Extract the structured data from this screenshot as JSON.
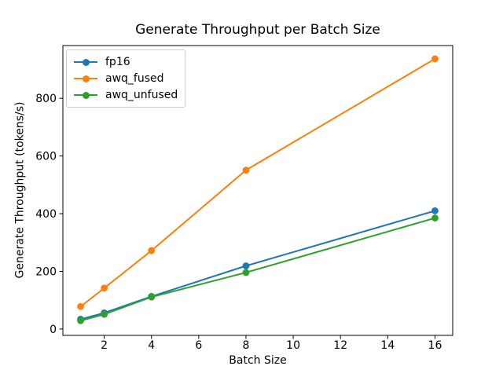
{
  "chart_data": {
    "type": "line",
    "title": "Generate Throughput per Batch Size",
    "xlabel": "Batch Size",
    "ylabel": "Generate Throughput (tokens/s)",
    "x": [
      1,
      2,
      4,
      8,
      16
    ],
    "series": [
      {
        "name": "fp16",
        "color": "#1f77b4",
        "values": [
          34,
          56,
          113,
          219,
          410
        ]
      },
      {
        "name": "awq_fused",
        "color": "#ff7f0e",
        "values": [
          78,
          142,
          272,
          551,
          937
        ]
      },
      {
        "name": "awq_unfused",
        "color": "#2ca02c",
        "values": [
          29,
          51,
          111,
          196,
          385
        ]
      }
    ],
    "xticks": [
      2,
      4,
      6,
      8,
      10,
      12,
      14,
      16
    ],
    "yticks": [
      0,
      200,
      400,
      600,
      800
    ],
    "xlim": [
      0.25,
      16.75
    ],
    "ylim": [
      -22,
      983
    ],
    "legend_position": "upper left",
    "grid": false,
    "marker": "o",
    "axis_color": "#000000",
    "background_color": "#ffffff"
  }
}
